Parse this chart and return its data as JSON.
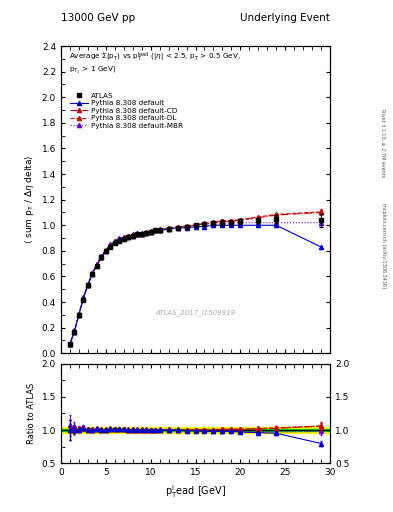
{
  "title_left": "13000 GeV pp",
  "title_right": "Underlying Event",
  "watermark": "ATLAS_2017_I1509919",
  "right_label": "Rivet 3.1.10, ≥ 2.7M events",
  "right_label2": "mcplots.cern.ch [arXiv:1306.3436]",
  "ylabel_main": "⟨ sum p_T / Δη delta⟩",
  "ylabel_ratio": "Ratio to ATLAS",
  "ylim_main": [
    0.0,
    2.4
  ],
  "ylim_ratio": [
    0.5,
    2.0
  ],
  "xlim": [
    0,
    30
  ],
  "yticks_main": [
    0.0,
    0.2,
    0.4,
    0.6,
    0.8,
    1.0,
    1.2,
    1.4,
    1.6,
    1.8,
    2.0,
    2.2,
    2.4
  ],
  "yticks_ratio": [
    0.5,
    1.0,
    1.5,
    2.0
  ],
  "xticks": [
    0,
    5,
    10,
    15,
    20,
    25,
    30
  ],
  "atlas_x": [
    1.0,
    1.5,
    2.0,
    2.5,
    3.0,
    3.5,
    4.0,
    4.5,
    5.0,
    5.5,
    6.0,
    6.5,
    7.0,
    7.5,
    8.0,
    8.5,
    9.0,
    9.5,
    10.0,
    10.5,
    11.0,
    12.0,
    13.0,
    14.0,
    15.0,
    16.0,
    17.0,
    18.0,
    19.0,
    20.0,
    22.0,
    24.0,
    29.0
  ],
  "atlas_y": [
    0.07,
    0.17,
    0.3,
    0.42,
    0.53,
    0.62,
    0.68,
    0.75,
    0.8,
    0.83,
    0.86,
    0.88,
    0.89,
    0.91,
    0.92,
    0.93,
    0.93,
    0.94,
    0.95,
    0.96,
    0.96,
    0.97,
    0.98,
    0.99,
    1.0,
    1.01,
    1.02,
    1.02,
    1.02,
    1.03,
    1.04,
    1.05,
    1.04
  ],
  "atlas_yerr": [
    0.01,
    0.01,
    0.01,
    0.01,
    0.01,
    0.01,
    0.01,
    0.01,
    0.01,
    0.01,
    0.01,
    0.01,
    0.01,
    0.01,
    0.01,
    0.01,
    0.01,
    0.01,
    0.01,
    0.01,
    0.01,
    0.01,
    0.01,
    0.01,
    0.01,
    0.01,
    0.01,
    0.02,
    0.02,
    0.02,
    0.02,
    0.03,
    0.05
  ],
  "py_default_x": [
    1.0,
    1.5,
    2.0,
    2.5,
    3.0,
    3.5,
    4.0,
    4.5,
    5.0,
    5.5,
    6.0,
    6.5,
    7.0,
    7.5,
    8.0,
    8.5,
    9.0,
    9.5,
    10.0,
    10.5,
    11.0,
    12.0,
    13.0,
    14.0,
    15.0,
    16.0,
    17.0,
    18.0,
    19.0,
    20.0,
    22.0,
    24.0,
    29.0
  ],
  "py_default_y": [
    0.07,
    0.17,
    0.3,
    0.43,
    0.53,
    0.62,
    0.69,
    0.75,
    0.8,
    0.84,
    0.87,
    0.89,
    0.9,
    0.91,
    0.92,
    0.93,
    0.93,
    0.94,
    0.95,
    0.96,
    0.96,
    0.97,
    0.98,
    0.98,
    0.99,
    0.99,
    1.0,
    1.0,
    1.0,
    1.0,
    1.0,
    1.0,
    0.83
  ],
  "py_default_yerr": [
    0.002,
    0.002,
    0.002,
    0.002,
    0.002,
    0.002,
    0.002,
    0.002,
    0.002,
    0.002,
    0.002,
    0.002,
    0.002,
    0.002,
    0.002,
    0.002,
    0.002,
    0.002,
    0.002,
    0.002,
    0.002,
    0.002,
    0.002,
    0.002,
    0.002,
    0.002,
    0.002,
    0.002,
    0.002,
    0.003,
    0.003,
    0.004,
    0.01
  ],
  "py_cd_x": [
    1.0,
    1.5,
    2.0,
    2.5,
    3.0,
    3.5,
    4.0,
    4.5,
    5.0,
    5.5,
    6.0,
    6.5,
    7.0,
    7.5,
    8.0,
    8.5,
    9.0,
    9.5,
    10.0,
    10.5,
    11.0,
    12.0,
    13.0,
    14.0,
    15.0,
    16.0,
    17.0,
    18.0,
    19.0,
    20.0,
    22.0,
    24.0,
    29.0
  ],
  "py_cd_y": [
    0.07,
    0.17,
    0.3,
    0.43,
    0.53,
    0.62,
    0.69,
    0.75,
    0.8,
    0.84,
    0.87,
    0.89,
    0.9,
    0.91,
    0.92,
    0.93,
    0.93,
    0.94,
    0.95,
    0.96,
    0.96,
    0.97,
    0.98,
    0.99,
    1.0,
    1.01,
    1.02,
    1.03,
    1.03,
    1.04,
    1.06,
    1.08,
    1.1
  ],
  "py_cd_yerr": [
    0.002,
    0.002,
    0.002,
    0.002,
    0.002,
    0.002,
    0.002,
    0.002,
    0.002,
    0.002,
    0.002,
    0.002,
    0.002,
    0.002,
    0.002,
    0.002,
    0.002,
    0.002,
    0.002,
    0.002,
    0.002,
    0.002,
    0.002,
    0.002,
    0.002,
    0.003,
    0.003,
    0.004,
    0.004,
    0.005,
    0.006,
    0.007,
    0.02
  ],
  "py_dl_x": [
    1.0,
    1.5,
    2.0,
    2.5,
    3.0,
    3.5,
    4.0,
    4.5,
    5.0,
    5.5,
    6.0,
    6.5,
    7.0,
    7.5,
    8.0,
    8.5,
    9.0,
    9.5,
    10.0,
    10.5,
    11.0,
    12.0,
    13.0,
    14.0,
    15.0,
    16.0,
    17.0,
    18.0,
    19.0,
    20.0,
    22.0,
    24.0,
    29.0
  ],
  "py_dl_y": [
    0.07,
    0.17,
    0.305,
    0.435,
    0.535,
    0.625,
    0.695,
    0.755,
    0.805,
    0.845,
    0.875,
    0.895,
    0.905,
    0.915,
    0.925,
    0.935,
    0.935,
    0.945,
    0.955,
    0.965,
    0.965,
    0.975,
    0.985,
    0.995,
    1.005,
    1.015,
    1.025,
    1.035,
    1.035,
    1.045,
    1.065,
    1.085,
    1.105
  ],
  "py_dl_yerr": [
    0.002,
    0.002,
    0.002,
    0.002,
    0.002,
    0.002,
    0.002,
    0.002,
    0.002,
    0.002,
    0.002,
    0.002,
    0.002,
    0.002,
    0.002,
    0.002,
    0.002,
    0.002,
    0.002,
    0.002,
    0.002,
    0.002,
    0.002,
    0.002,
    0.002,
    0.003,
    0.003,
    0.004,
    0.004,
    0.005,
    0.006,
    0.007,
    0.02
  ],
  "py_mbr_x": [
    1.0,
    1.5,
    2.0,
    2.5,
    3.0,
    3.5,
    4.0,
    4.5,
    5.0,
    5.5,
    6.0,
    6.5,
    7.0,
    7.5,
    8.0,
    8.5,
    9.0,
    9.5,
    10.0,
    10.5,
    11.0,
    12.0,
    13.0,
    14.0,
    15.0,
    16.0,
    17.0,
    18.0,
    19.0,
    20.0,
    22.0,
    24.0,
    29.0
  ],
  "py_mbr_y": [
    0.075,
    0.18,
    0.31,
    0.44,
    0.54,
    0.63,
    0.7,
    0.76,
    0.81,
    0.85,
    0.88,
    0.9,
    0.91,
    0.92,
    0.93,
    0.94,
    0.94,
    0.95,
    0.95,
    0.96,
    0.97,
    0.98,
    0.99,
    0.99,
    1.0,
    1.01,
    1.01,
    1.01,
    1.02,
    1.02,
    1.02,
    1.02,
    1.02
  ],
  "py_mbr_yerr": [
    0.002,
    0.002,
    0.002,
    0.002,
    0.002,
    0.002,
    0.002,
    0.002,
    0.002,
    0.002,
    0.002,
    0.002,
    0.002,
    0.002,
    0.002,
    0.002,
    0.002,
    0.002,
    0.002,
    0.002,
    0.002,
    0.002,
    0.002,
    0.002,
    0.002,
    0.003,
    0.003,
    0.004,
    0.004,
    0.004,
    0.005,
    0.006,
    0.015
  ],
  "color_atlas": "#000000",
  "color_default": "#0000cc",
  "color_cd": "#cc0000",
  "color_dl": "#cc0000",
  "color_mbr": "#6600cc",
  "band_color_yellow": "#ffff00",
  "band_color_green": "#00bb00",
  "band_yellow": 0.05,
  "band_green": 0.02
}
